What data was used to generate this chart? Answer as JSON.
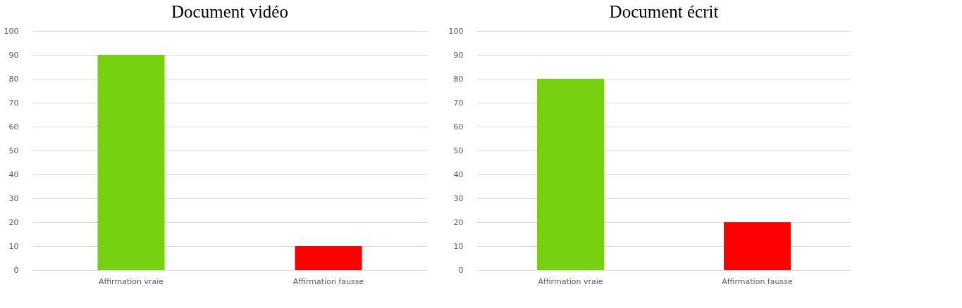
{
  "chart_data": [
    {
      "type": "bar",
      "title": "Document vidéo",
      "categories": [
        "Affirmation vraie",
        "Affirmation fausse"
      ],
      "values": [
        90,
        10
      ],
      "colors": [
        "#77d00f",
        "#ff0000"
      ],
      "ylim": [
        0,
        100
      ],
      "yticks": [
        0,
        10,
        20,
        30,
        40,
        50,
        60,
        70,
        80,
        90,
        100
      ],
      "grid": "y"
    },
    {
      "type": "bar",
      "title": "Document écrit",
      "categories": [
        "Affirmation vraie",
        "Affirmation fausse"
      ],
      "values": [
        80,
        20
      ],
      "colors": [
        "#77d00f",
        "#ff0000"
      ],
      "ylim": [
        0,
        100
      ],
      "yticks": [
        0,
        10,
        20,
        30,
        40,
        50,
        60,
        70,
        80,
        90,
        100
      ],
      "grid": "y"
    }
  ]
}
